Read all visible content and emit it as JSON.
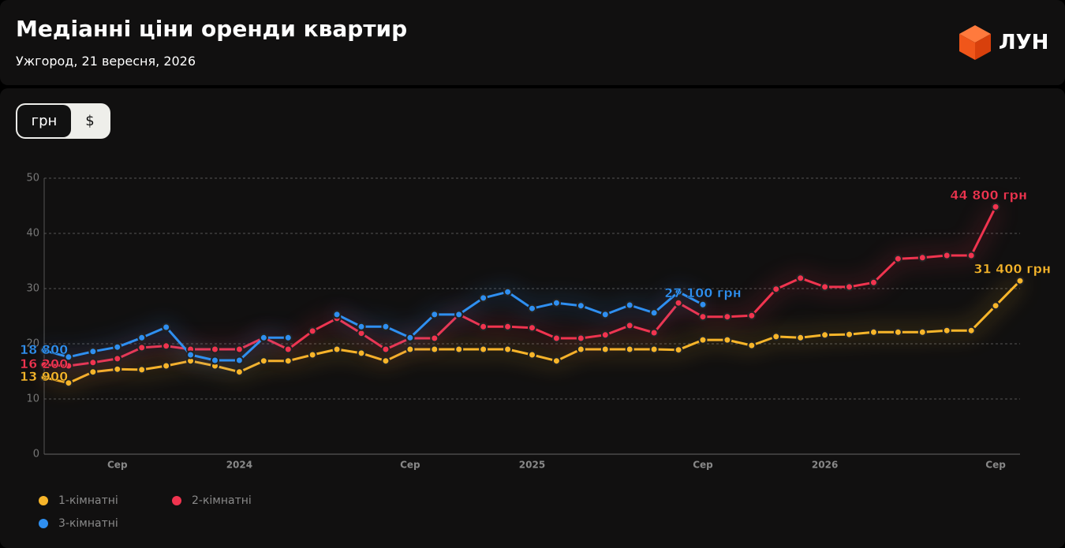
{
  "header": {
    "title": "Медіанні ціни оренди квартир",
    "subtitle": "Ужгород, 21 вересня, 2026",
    "logo": "ЛУН"
  },
  "currency_options": [
    "грн",
    "$"
  ],
  "chart_data": {
    "type": "line",
    "categories": [
      null,
      null,
      null,
      "Сер",
      null,
      null,
      null,
      null,
      "2024",
      null,
      null,
      null,
      null,
      null,
      null,
      "Сер",
      null,
      null,
      null,
      null,
      "2025",
      null,
      null,
      null,
      null,
      null,
      null,
      "Сер",
      null,
      null,
      null,
      null,
      "2026",
      null,
      null,
      null,
      null,
      null,
      null,
      "Сер",
      null
    ],
    "ylim": [
      0,
      50
    ],
    "yticks": [
      0,
      10,
      20,
      30,
      40,
      50
    ],
    "grid": true,
    "legend": "bottom-left",
    "series": [
      {
        "name": "1-кімнатні",
        "color": "#f7b52a",
        "values": [
          13.9,
          12.9,
          14.9,
          15.4,
          15.3,
          16,
          16.9,
          16,
          14.9,
          16.9,
          16.9,
          18,
          19,
          18.3,
          16.9,
          19,
          19,
          19,
          19,
          19,
          18,
          16.9,
          19,
          19,
          19,
          19,
          18.9,
          20.7,
          20.7,
          19.7,
          21.3,
          21.1,
          21.6,
          21.7,
          22.1,
          22.1,
          22.1,
          22.4,
          22.4,
          26.9,
          31.4
        ],
        "value_labels": [
          "13 900",
          null,
          null,
          null,
          null,
          null,
          null,
          null,
          null,
          null,
          null,
          null,
          null,
          null,
          null,
          null,
          null,
          null,
          null,
          null,
          null,
          null,
          null,
          null,
          null,
          null,
          null,
          null,
          null,
          null,
          null,
          null,
          null,
          null,
          null,
          null,
          null,
          null,
          null,
          null,
          "31 400 грн"
        ]
      },
      {
        "name": "2-кімнатні",
        "color": "#f0344f",
        "values": [
          16.2,
          16,
          16.6,
          17.3,
          19.3,
          19.6,
          19,
          19,
          19,
          21.1,
          19,
          22.3,
          24.6,
          21.9,
          19,
          21,
          21,
          25.3,
          23.1,
          23.1,
          22.9,
          21,
          21,
          21.6,
          23.3,
          22,
          27.4,
          24.9,
          24.9,
          25.1,
          29.9,
          31.9,
          30.3,
          30.3,
          31.1,
          35.4,
          35.6,
          36,
          36,
          44.8,
          null
        ],
        "value_labels": [
          "16 200",
          null,
          null,
          null,
          null,
          null,
          null,
          null,
          null,
          null,
          null,
          null,
          null,
          null,
          null,
          null,
          null,
          null,
          null,
          null,
          null,
          null,
          null,
          null,
          null,
          null,
          null,
          null,
          null,
          null,
          null,
          null,
          null,
          null,
          null,
          null,
          null,
          null,
          null,
          "44 800 грн",
          null
        ]
      },
      {
        "name": "3-кімнатні",
        "color": "#2f8ff0",
        "values": [
          18.8,
          17.6,
          18.6,
          19.4,
          21.1,
          23,
          18,
          17,
          17,
          21.1,
          21.1,
          null,
          25.3,
          23.1,
          23.1,
          21.1,
          25.3,
          25.3,
          28.3,
          29.4,
          26.4,
          27.4,
          26.9,
          25.3,
          27,
          25.6,
          29.4,
          27.1,
          null,
          null,
          null,
          null,
          null,
          null,
          null,
          null,
          null,
          null,
          null,
          null,
          null
        ],
        "value_labels": [
          "18 800",
          null,
          null,
          null,
          null,
          null,
          null,
          null,
          null,
          null,
          null,
          null,
          null,
          null,
          null,
          null,
          null,
          null,
          null,
          null,
          null,
          null,
          null,
          null,
          null,
          null,
          null,
          "27 100 грн",
          null,
          null,
          null,
          null,
          null,
          null,
          null,
          null,
          null,
          null,
          null,
          null,
          null
        ]
      }
    ]
  }
}
